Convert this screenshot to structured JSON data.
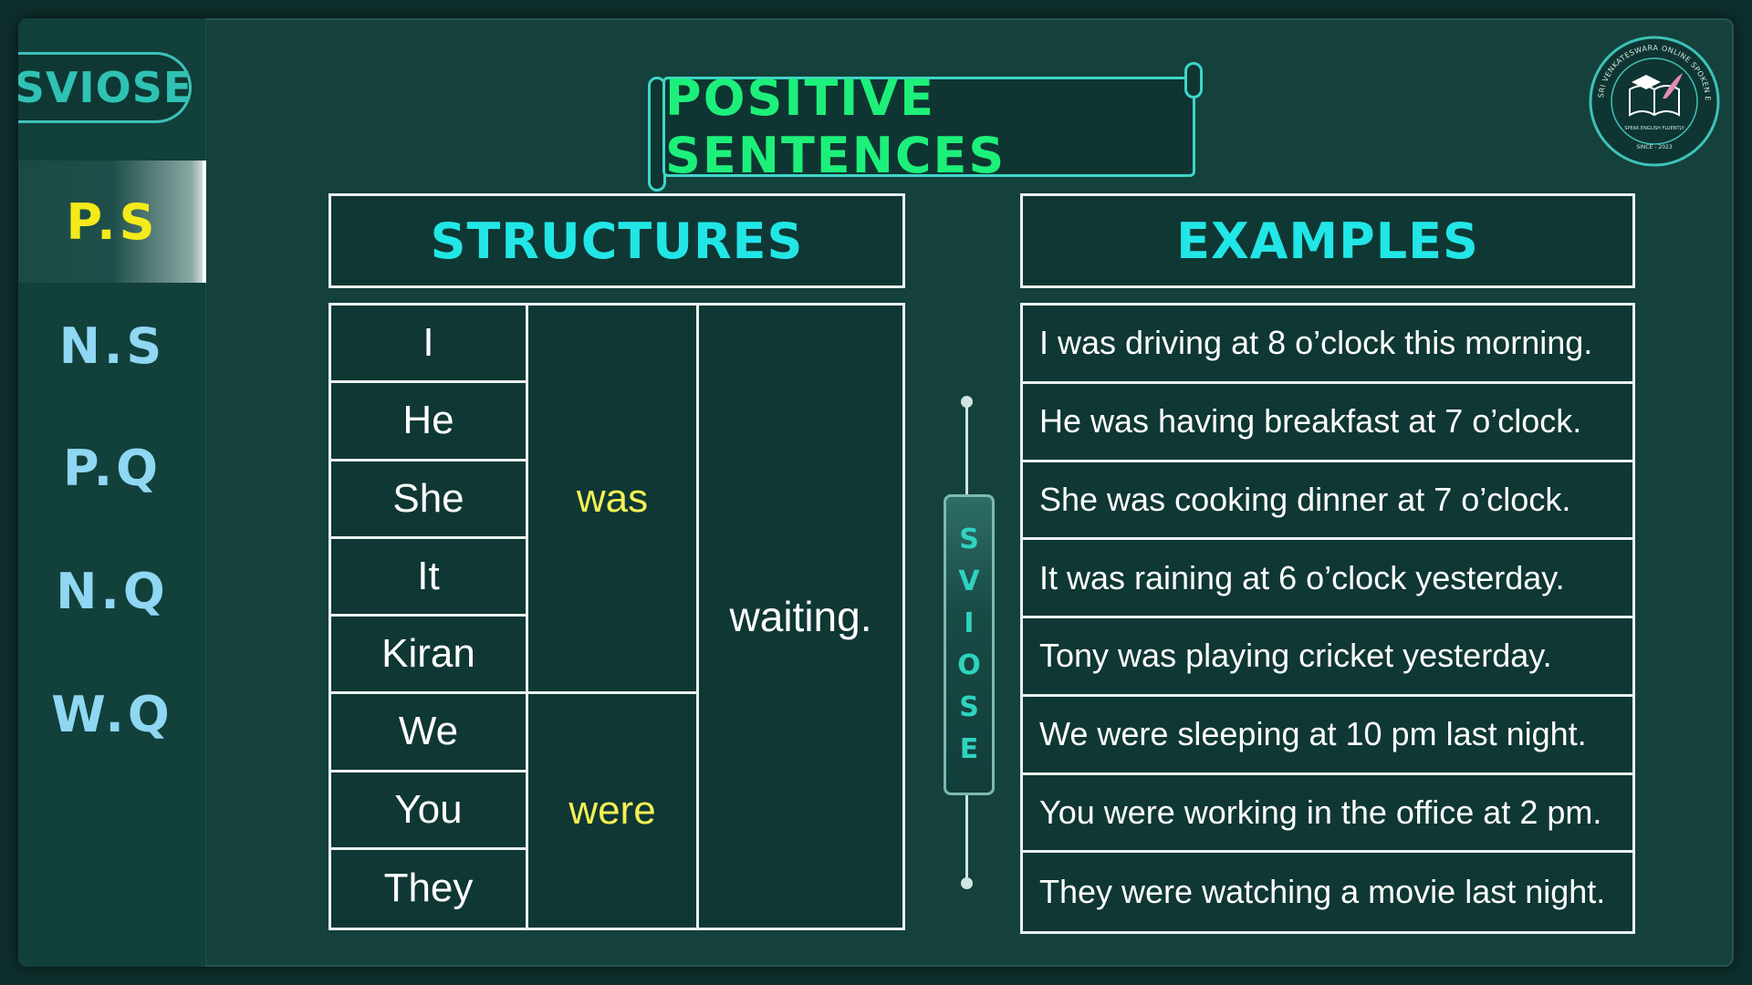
{
  "brand": "SVIOSE",
  "sidebar": {
    "items": [
      {
        "label": "P.S",
        "active": true
      },
      {
        "label": "N.S",
        "active": false
      },
      {
        "label": "P.Q",
        "active": false
      },
      {
        "label": "N.Q",
        "active": false
      },
      {
        "label": "W.Q",
        "active": false
      }
    ]
  },
  "title": "POSITIVE SENTENCES",
  "logo": {
    "ring_text": "SRI VENKATESWARA ONLINE SPOKEN ENGLISH SCHOOL",
    "tagline": "SPEAK ENGLISH FLUENTLY",
    "since": "SINCE - 2023"
  },
  "structures": {
    "header": "STRUCTURES",
    "pronouns": [
      "I",
      "He",
      "She",
      "It",
      "Kiran",
      "We",
      "You",
      "They"
    ],
    "aux_singular": "was",
    "aux_plural": "were",
    "verb": "waiting."
  },
  "divider_letters": [
    "S",
    "V",
    "I",
    "O",
    "S",
    "E"
  ],
  "examples": {
    "header": "EXAMPLES",
    "rows": [
      "I was driving at 8 o’clock this morning.",
      "He was having breakfast at 7 o’clock.",
      "She was cooking dinner at 7 o’clock.",
      "It was raining at 6 o’clock yesterday.",
      "Tony was playing cricket yesterday.",
      "We were sleeping at 10 pm last night.",
      "You were working in the office at 2 pm.",
      "They were watching a movie last night."
    ]
  },
  "colors": {
    "accent_title": "#1df07a",
    "header_text": "#22e6e6",
    "aux_text": "#f4f055",
    "active_nav": "#f4ea1b",
    "nav_text": "#8fd7f2"
  }
}
